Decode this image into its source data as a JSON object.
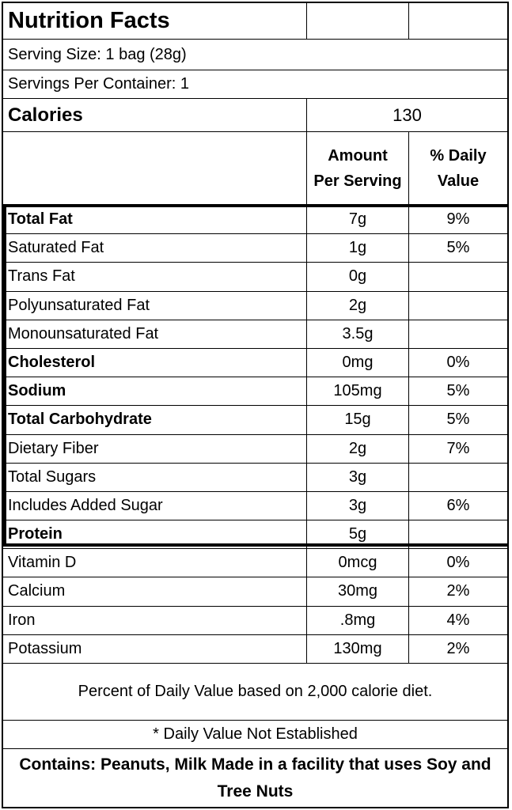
{
  "title": "Nutrition Facts",
  "serving_size": "Serving Size: 1 bag (28g)",
  "servings_per_container": "Servings Per Container: 1",
  "calories": {
    "label": "Calories",
    "value": "130"
  },
  "header": {
    "amount": "Amount\nPer Serving",
    "daily_value": "% Daily\nValue"
  },
  "nutrients": [
    {
      "name": "Total Fat",
      "amount": "7g",
      "dv": "9%",
      "bold": true
    },
    {
      "name": "Saturated Fat",
      "amount": "1g",
      "dv": "5%",
      "bold": false
    },
    {
      "name": "Trans Fat",
      "amount": "0g",
      "dv": "",
      "bold": false
    },
    {
      "name": "Polyunsaturated Fat",
      "amount": "2g",
      "dv": "",
      "bold": false
    },
    {
      "name": "Monounsaturated Fat",
      "amount": "3.5g",
      "dv": "",
      "bold": false
    },
    {
      "name": "Cholesterol",
      "amount": "0mg",
      "dv": "0%",
      "bold": true
    },
    {
      "name": "Sodium",
      "amount": "105mg",
      "dv": "5%",
      "bold": true
    },
    {
      "name": "Total Carbohydrate",
      "amount": "15g",
      "dv": "5%",
      "bold": true
    },
    {
      "name": "Dietary Fiber",
      "amount": "2g",
      "dv": "7%",
      "bold": false
    },
    {
      "name": "Total Sugars",
      "amount": "3g",
      "dv": "",
      "bold": false
    },
    {
      "name": "Includes Added Sugar",
      "amount": "3g",
      "dv": "6%",
      "bold": false
    },
    {
      "name": "Protein",
      "amount": "5g",
      "dv": "",
      "bold": true
    }
  ],
  "vitamins": [
    {
      "name": "Vitamin D",
      "amount": "0mcg",
      "dv": "0%"
    },
    {
      "name": "Calcium",
      "amount": "30mg",
      "dv": "2%"
    },
    {
      "name": "Iron",
      "amount": ".8mg",
      "dv": "4%"
    },
    {
      "name": "Potassium",
      "amount": "130mg",
      "dv": "2%"
    }
  ],
  "footnote_percent": "Percent of Daily Value based on 2,000 calorie diet.",
  "footnote_not_established": "* Daily Value Not Established",
  "contains": "Contains: Peanuts, Milk Made in a facility that uses Soy and Tree Nuts"
}
